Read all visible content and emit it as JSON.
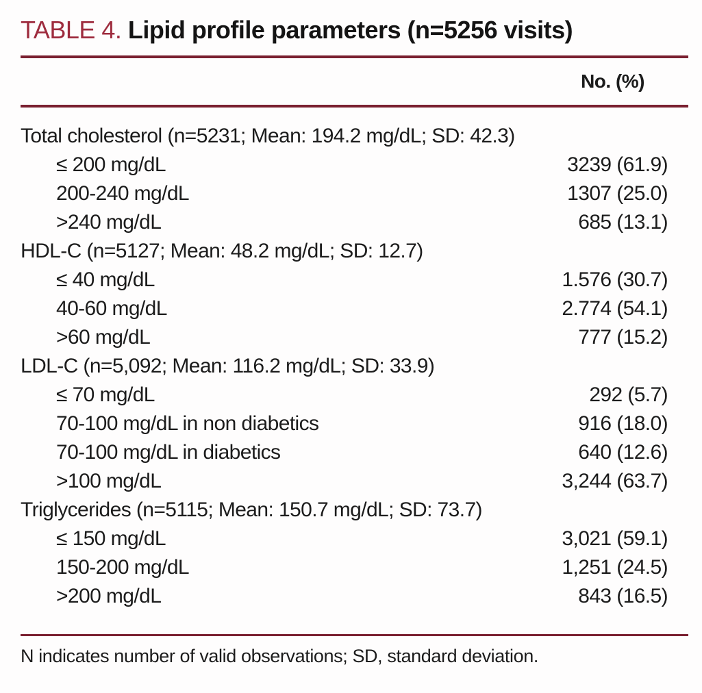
{
  "title": {
    "label": "TABLE 4.",
    "text": "Lipid profile parameters (n=5256 visits)"
  },
  "columns": {
    "value_header": "No. (%)"
  },
  "table": {
    "sections": [
      {
        "header": "Total cholesterol (n=5231; Mean: 194.2 mg/dL; SD: 42.3)",
        "rows": [
          {
            "label": "≤ 200 mg/dL",
            "value": "3239 (61.9)"
          },
          {
            "label": "200-240 mg/dL",
            "value": "1307 (25.0)"
          },
          {
            "label": ">240 mg/dL",
            "value": "685 (13.1)"
          }
        ]
      },
      {
        "header": "HDL-C (n=5127; Mean: 48.2 mg/dL; SD: 12.7)",
        "rows": [
          {
            "label": "≤ 40 mg/dL",
            "value": "1.576 (30.7)"
          },
          {
            "label": "40-60 mg/dL",
            "value": "2.774 (54.1)"
          },
          {
            "label": ">60 mg/dL",
            "value": "777 (15.2)"
          }
        ]
      },
      {
        "header": "LDL-C (n=5,092; Mean: 116.2 mg/dL; SD: 33.9)",
        "rows": [
          {
            "label": "≤ 70 mg/dL",
            "value": "292 (5.7)"
          },
          {
            "label": "70-100 mg/dL in non diabetics",
            "value": "916 (18.0)"
          },
          {
            "label": "70-100 mg/dL in diabetics",
            "value": "640 (12.6)"
          },
          {
            "label": ">100 mg/dL",
            "value": "3,244 (63.7)"
          }
        ]
      },
      {
        "header": "Triglycerides (n=5115; Mean: 150.7 mg/dL; SD: 73.7)",
        "rows": [
          {
            "label": "≤ 150 mg/dL",
            "value": "3,021 (59.1)"
          },
          {
            "label": "150-200 mg/dL",
            "value": "1,251 (24.5)"
          },
          {
            "label": ">200 mg/dL",
            "value": "843 (16.5)"
          }
        ]
      }
    ]
  },
  "footnote": "N indicates number of valid observations; SD, standard deviation.",
  "colors": {
    "title_accent": "#9e2c3e",
    "rule": "#7a2030",
    "text": "#1c1c1c"
  }
}
